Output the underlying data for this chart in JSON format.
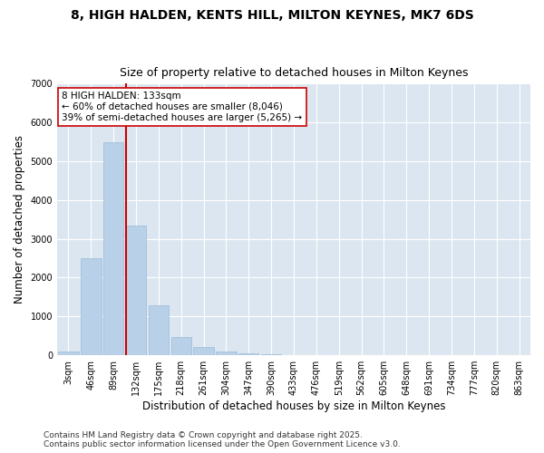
{
  "title": "8, HIGH HALDEN, KENTS HILL, MILTON KEYNES, MK7 6DS",
  "subtitle": "Size of property relative to detached houses in Milton Keynes",
  "xlabel": "Distribution of detached houses by size in Milton Keynes",
  "ylabel": "Number of detached properties",
  "categories": [
    "3sqm",
    "46sqm",
    "89sqm",
    "132sqm",
    "175sqm",
    "218sqm",
    "261sqm",
    "304sqm",
    "347sqm",
    "390sqm",
    "433sqm",
    "476sqm",
    "519sqm",
    "562sqm",
    "605sqm",
    "648sqm",
    "691sqm",
    "734sqm",
    "777sqm",
    "820sqm",
    "863sqm"
  ],
  "values": [
    90,
    2510,
    5480,
    3340,
    1290,
    480,
    210,
    95,
    45,
    15,
    0,
    0,
    0,
    0,
    0,
    0,
    0,
    0,
    0,
    0,
    0
  ],
  "bar_color": "#b8d0e8",
  "bar_edge_color": "#9bbbd6",
  "vline_color": "#cc0000",
  "vline_x": 2.575,
  "annotation_text": "8 HIGH HALDEN: 133sqm\n← 60% of detached houses are smaller (8,046)\n39% of semi-detached houses are larger (5,265) →",
  "annotation_box_facecolor": "#ffffff",
  "annotation_box_edgecolor": "#cc0000",
  "ylim": [
    0,
    7000
  ],
  "yticks": [
    0,
    1000,
    2000,
    3000,
    4000,
    5000,
    6000,
    7000
  ],
  "fig_facecolor": "#ffffff",
  "plot_facecolor": "#dce6f0",
  "grid_color": "#ffffff",
  "title_fontsize": 10,
  "subtitle_fontsize": 9,
  "xlabel_fontsize": 8.5,
  "ylabel_fontsize": 8.5,
  "tick_fontsize": 7,
  "annotation_fontsize": 7.5,
  "footer_fontsize": 6.5,
  "footer_line1": "Contains HM Land Registry data © Crown copyright and database right 2025.",
  "footer_line2": "Contains public sector information licensed under the Open Government Licence v3.0."
}
